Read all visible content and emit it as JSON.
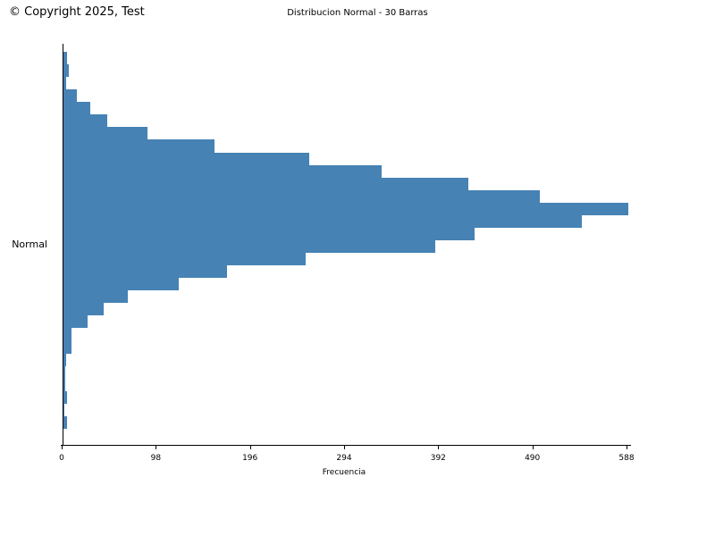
{
  "header": {
    "copyright": "© Copyright 2025, Test"
  },
  "chart_data": {
    "type": "bar",
    "orientation": "horizontal",
    "title": "Distribucion Normal - 30 Barras",
    "xlabel": "Frecuencia",
    "category_label": "Normal",
    "n_bars": 30,
    "xlim": [
      0,
      588
    ],
    "xticks": [
      0,
      98,
      196,
      294,
      392,
      490,
      588
    ],
    "grid": false,
    "legend": "none",
    "bar_color": "#4682b4",
    "values": [
      4,
      6,
      3,
      14,
      28,
      46,
      87,
      157,
      256,
      331,
      421,
      496,
      588,
      540,
      428,
      387,
      252,
      170,
      120,
      67,
      42,
      25,
      8,
      8,
      3,
      2,
      2,
      4,
      1,
      4
    ]
  }
}
